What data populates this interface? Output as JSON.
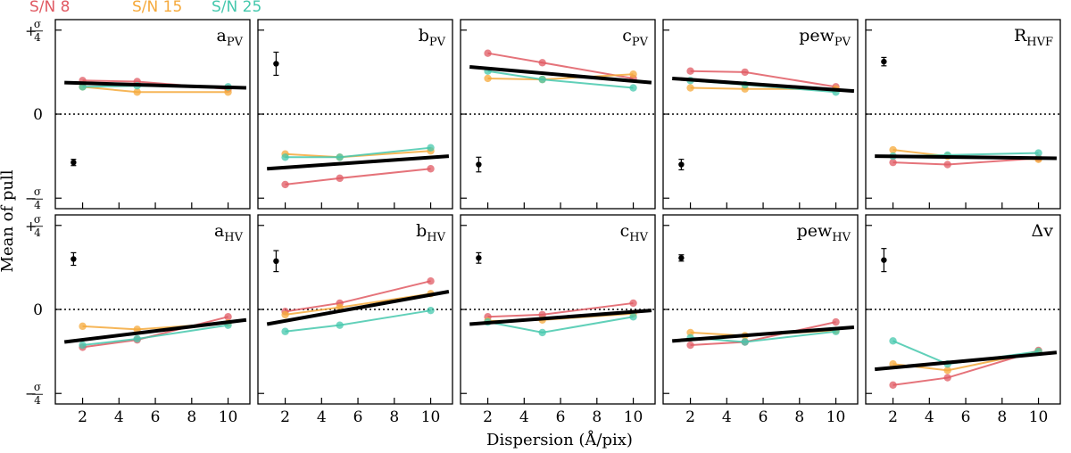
{
  "chart_data": {
    "type": "line",
    "ylabel": "Mean of pull",
    "xlabel": "Dispersion (Å/pix)",
    "x": [
      2,
      5,
      10
    ],
    "xlim": [
      0.5,
      11.2
    ],
    "ylim": [
      -4.5,
      4.5
    ],
    "xticks": [
      2,
      4,
      6,
      8,
      10
    ],
    "colors": {
      "sn8": "#e05a63",
      "sn15": "#f5a93b",
      "sn25": "#45c8ad",
      "fit": "#000000"
    },
    "legend": [
      {
        "key": "sn8",
        "label": "S/N 8"
      },
      {
        "key": "sn15",
        "label": "S/N 15"
      },
      {
        "key": "sn25",
        "label": "S/N 25"
      }
    ],
    "y_tick_labels": {
      "top_prefix": "+",
      "bottom_prefix": "−",
      "numerator": "σ",
      "denominator": "4",
      "zero": "0"
    },
    "panels": [
      {
        "id": "a-pv",
        "label": "a",
        "sub": "PV",
        "series": {
          "sn8": [
            1.6,
            1.55,
            1.2
          ],
          "sn15": [
            1.3,
            1.05,
            1.05
          ],
          "sn25": [
            1.3,
            1.35,
            1.3
          ]
        },
        "fit": {
          "x": [
            1,
            11
          ],
          "y": [
            1.5,
            1.25
          ]
        },
        "err": {
          "x": 1.5,
          "y": -2.3,
          "e": 0.15
        }
      },
      {
        "id": "b-pv",
        "label": "b",
        "sub": "PV",
        "series": {
          "sn8": [
            -3.35,
            -3.05,
            -2.6
          ],
          "sn15": [
            -1.9,
            -2.05,
            -1.75
          ],
          "sn25": [
            -2.05,
            -2.05,
            -1.6
          ]
        },
        "fit": {
          "x": [
            1,
            11
          ],
          "y": [
            -2.6,
            -2.0
          ]
        },
        "err": {
          "x": 1.5,
          "y": 2.4,
          "e": 0.55
        }
      },
      {
        "id": "c-pv",
        "label": "c",
        "sub": "PV",
        "series": {
          "sn8": [
            2.9,
            2.45,
            1.7
          ],
          "sn15": [
            1.7,
            1.65,
            1.9
          ],
          "sn25": [
            2.05,
            1.65,
            1.25
          ]
        },
        "fit": {
          "x": [
            1,
            11
          ],
          "y": [
            2.25,
            1.5
          ]
        },
        "err": {
          "x": 1.5,
          "y": -2.4,
          "e": 0.35
        }
      },
      {
        "id": "pew-pv",
        "label": "pew",
        "sub": "PV",
        "series": {
          "sn8": [
            2.05,
            2.0,
            1.3
          ],
          "sn15": [
            1.25,
            1.2,
            1.2
          ],
          "sn25": [
            1.6,
            1.4,
            1.05
          ]
        },
        "fit": {
          "x": [
            1,
            11
          ],
          "y": [
            1.7,
            1.1
          ]
        },
        "err": {
          "x": 1.5,
          "y": -2.4,
          "e": 0.25
        }
      },
      {
        "id": "r-hvf",
        "label": "R",
        "sub": "HVF",
        "series": {
          "sn8": [
            -2.3,
            -2.4,
            -2.1
          ],
          "sn15": [
            -1.7,
            -2.0,
            -2.15
          ],
          "sn25": [
            -2.0,
            -1.95,
            -1.85
          ]
        },
        "fit": {
          "x": [
            1,
            11
          ],
          "y": [
            -2.0,
            -2.1
          ]
        },
        "err": {
          "x": 1.5,
          "y": 2.5,
          "e": 0.2
        }
      },
      {
        "id": "a-hv",
        "label": "a",
        "sub": "HV",
        "series": {
          "sn8": [
            -1.8,
            -1.45,
            -0.35
          ],
          "sn15": [
            -0.8,
            -0.95,
            -0.65
          ],
          "sn25": [
            -1.7,
            -1.4,
            -0.75
          ]
        },
        "fit": {
          "x": [
            1,
            11
          ],
          "y": [
            -1.55,
            -0.5
          ]
        },
        "err": {
          "x": 1.5,
          "y": 2.4,
          "e": 0.3
        }
      },
      {
        "id": "b-hv",
        "label": "b",
        "sub": "HV",
        "series": {
          "sn8": [
            -0.1,
            0.3,
            1.35
          ],
          "sn15": [
            -0.25,
            0.1,
            0.75
          ],
          "sn25": [
            -1.05,
            -0.75,
            -0.05
          ]
        },
        "fit": {
          "x": [
            1,
            11
          ],
          "y": [
            -0.7,
            0.85
          ]
        },
        "err": {
          "x": 1.5,
          "y": 2.3,
          "e": 0.5
        }
      },
      {
        "id": "c-hv",
        "label": "c",
        "sub": "HV",
        "series": {
          "sn8": [
            -0.35,
            -0.25,
            0.3
          ],
          "sn15": [
            -0.55,
            -0.5,
            -0.2
          ],
          "sn25": [
            -0.6,
            -1.1,
            -0.35
          ]
        },
        "fit": {
          "x": [
            1,
            11
          ],
          "y": [
            -0.7,
            -0.05
          ]
        },
        "err": {
          "x": 1.5,
          "y": 2.45,
          "e": 0.25
        }
      },
      {
        "id": "pew-hv",
        "label": "pew",
        "sub": "HV",
        "series": {
          "sn8": [
            -1.7,
            -1.55,
            -0.6
          ],
          "sn15": [
            -1.1,
            -1.25,
            -1.0
          ],
          "sn25": [
            -1.35,
            -1.55,
            -1.05
          ]
        },
        "fit": {
          "x": [
            1,
            11
          ],
          "y": [
            -1.5,
            -0.85
          ]
        },
        "err": {
          "x": 1.5,
          "y": 2.45,
          "e": 0.15
        }
      },
      {
        "id": "dv",
        "label": "Δv",
        "sub": "",
        "series": {
          "sn8": [
            -3.6,
            -3.25,
            -1.95
          ],
          "sn15": [
            -2.6,
            -2.9,
            -2.0
          ],
          "sn25": [
            -1.5,
            -2.6,
            -2.0
          ]
        },
        "fit": {
          "x": [
            1,
            11
          ],
          "y": [
            -2.85,
            -2.05
          ]
        },
        "err": {
          "x": 1.5,
          "y": 2.35,
          "e": 0.55
        }
      }
    ]
  }
}
